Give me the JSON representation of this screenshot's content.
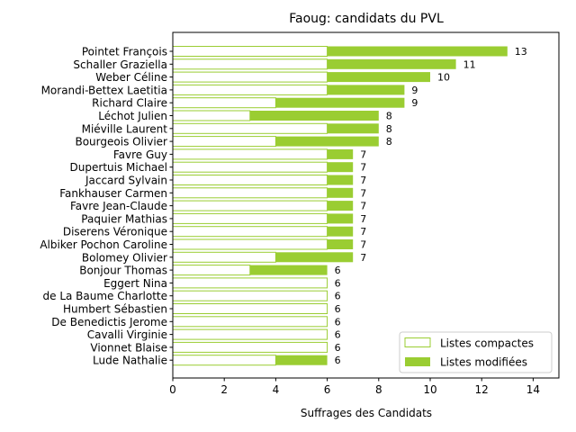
{
  "chart_data": {
    "type": "bar",
    "orientation": "horizontal",
    "stacked": true,
    "title": "Faoug: candidats du PVL",
    "xlabel": "Suffrages des Candidats",
    "ylabel": "",
    "xlim": [
      0,
      15
    ],
    "xticks": [
      0,
      2,
      4,
      6,
      8,
      10,
      12,
      14
    ],
    "grid": false,
    "legend_position": "bottom-right",
    "categories": [
      "Pointet François",
      "Schaller Graziella",
      "Weber Céline",
      "Morandi-Bettex Laetitia",
      "Richard Claire",
      "Léchot Julien",
      "Miéville Laurent",
      "Bourgeois Olivier",
      "Favre Guy",
      "Dupertuis Michael",
      "Jaccard Sylvain",
      "Fankhauser Carmen",
      "Favre Jean-Claude",
      "Paquier Mathias",
      "Diserens Véronique",
      "Albiker Pochon Caroline",
      "Bolomey Olivier",
      "Bonjour Thomas",
      "Eggert Nina",
      "de La Baume Charlotte",
      "Humbert Sébastien",
      "De Benedictis Jerome",
      "Cavalli Virginie",
      "Vionnet Blaise",
      "Lude Nathalie"
    ],
    "series": [
      {
        "name": "Listes compactes",
        "color": "#9acd32",
        "style": "outline",
        "values": [
          6,
          6,
          6,
          6,
          4,
          3,
          6,
          4,
          6,
          6,
          6,
          6,
          6,
          6,
          6,
          6,
          4,
          3,
          6,
          6,
          6,
          6,
          6,
          6,
          4
        ]
      },
      {
        "name": "Listes modifiées",
        "color": "#9acd32",
        "style": "filled",
        "values": [
          7,
          5,
          4,
          3,
          5,
          5,
          2,
          4,
          1,
          1,
          1,
          1,
          1,
          1,
          1,
          1,
          3,
          3,
          0,
          0,
          0,
          0,
          0,
          0,
          2
        ]
      }
    ],
    "totals": [
      13,
      11,
      10,
      9,
      9,
      8,
      8,
      8,
      7,
      7,
      7,
      7,
      7,
      7,
      7,
      7,
      7,
      6,
      6,
      6,
      6,
      6,
      6,
      6,
      6
    ]
  }
}
